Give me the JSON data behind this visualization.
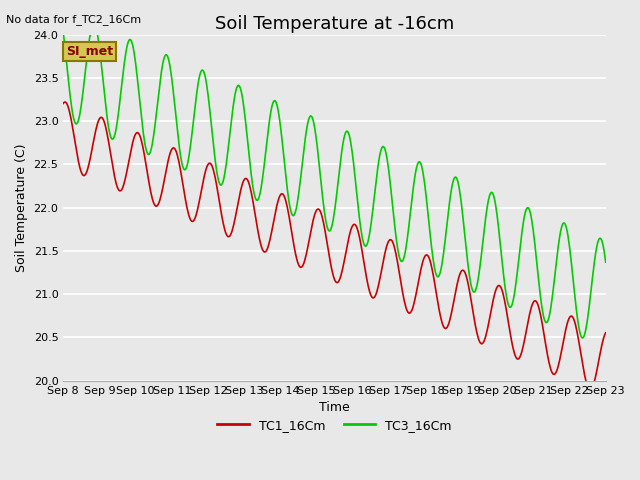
{
  "title": "Soil Temperature at -16cm",
  "ylabel": "Soil Temperature (C)",
  "xlabel": "Time",
  "top_left_text": "No data for f_TC2_16Cm",
  "legend_box_label": "SI_met",
  "legend_box_bg": "#d4c850",
  "legend_box_border": "#8b7700",
  "ylim": [
    20.0,
    24.0
  ],
  "yticks": [
    20.0,
    20.5,
    21.0,
    21.5,
    22.0,
    22.5,
    23.0,
    23.5,
    24.0
  ],
  "bg_color": "#e8e8e8",
  "plot_bg_color": "#e8e8e8",
  "line1_color": "#cc0000",
  "line2_color": "#00cc00",
  "line1_label": "TC1_16Cm",
  "line2_label": "TC3_16Cm",
  "xtick_labels": [
    "Sep 8",
    "Sep 9",
    "Sep 10",
    "Sep 11",
    "Sep 12",
    "Sep 13",
    "Sep 14",
    "Sep 15",
    "Sep 16",
    "Sep 17",
    "Sep 18",
    "Sep 19",
    "Sep 20",
    "Sep 21",
    "Sep 22",
    "Sep 23"
  ],
  "title_fontsize": 13,
  "axis_label_fontsize": 9,
  "tick_fontsize": 8,
  "legend_fontsize": 9,
  "figsize": [
    6.4,
    4.8
  ],
  "dpi": 100
}
